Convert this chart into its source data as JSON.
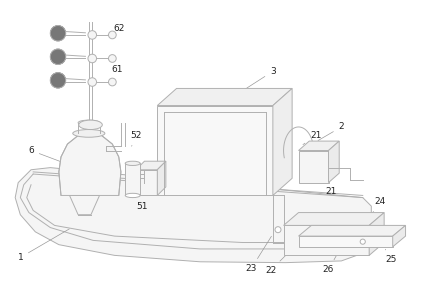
{
  "background_color": "#ffffff",
  "line_color": "#b0b0b0",
  "label_color": "#222222",
  "figsize": [
    4.43,
    3.01
  ],
  "dpi": 100,
  "lw": 0.7
}
